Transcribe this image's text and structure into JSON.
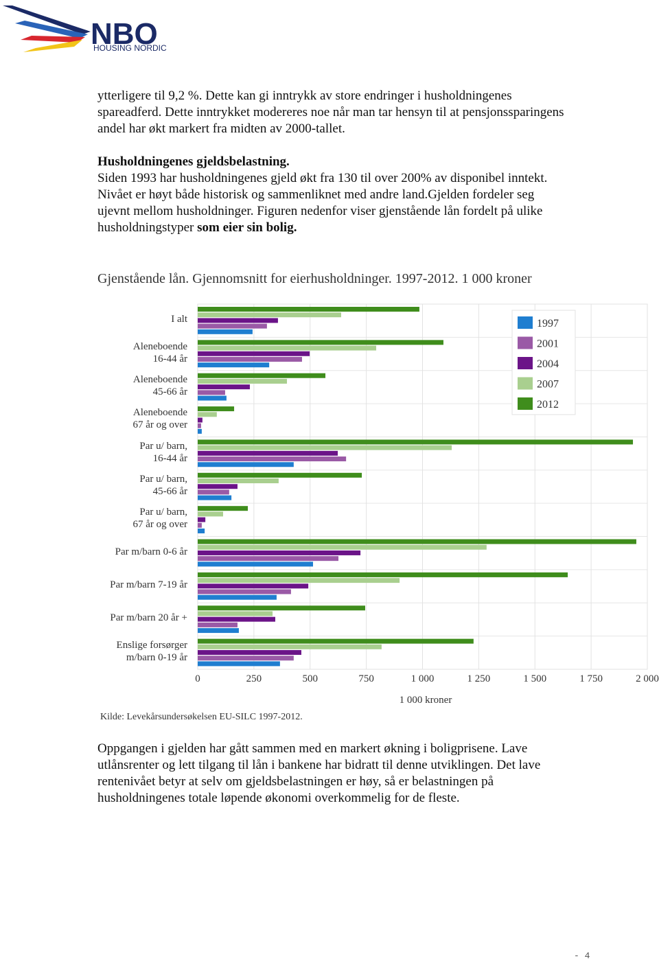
{
  "header": {
    "logo": "NBO",
    "logo_subtitle": "HOUSING NORDIC"
  },
  "paragraph1": "ytterligere til 9,2 %. Dette kan gi inntrykk av store endringer i husholdningenes spareadferd. Dette inntrykket modereres noe når man tar hensyn til at pensjonssparingens andel har økt markert fra midten av 2000-tallet.",
  "heading": "Husholdningenes gjeldsbelastning.",
  "paragraph2": {
    "text": "Siden 1993 har husholdningenes gjeld økt fra 130 til over 200% av disponibel inntekt. Nivået er høyt både historisk og sammenliknet med andre land.Gjelden fordeler seg ujevnt mellom husholdninger. Figuren nedenfor viser gjenstående lån fordelt på ulike husholdningstyper",
    "bold": "som eier sin bolig."
  },
  "chart_data": {
    "type": "hbar",
    "title": "Gjenstående lån. Gjennomsnitt for eierhusholdninger. 1997-2012. 1 000 kroner",
    "xlabel": "1 000 kroner",
    "source": "Kilde: Levekårsundersøkelsen EU-SILC 1997-2012.",
    "categories": [
      "I alt",
      "Aleneboende\n16-44 år",
      "Aleneboende\n45-66 år",
      "Aleneboende\n67 år og over",
      "Par u/ barn,\n16-44 år",
      "Par u/ barn,\n45-66 år",
      "Par u/ barn,\n67 år og over",
      "Par m/barn 0-6 år",
      "Par m/barn 7-19 år",
      "Par m/barn 20 år +",
      "Enslige forsørger\nm/barn 0-19 år"
    ],
    "series": [
      {
        "name": "1997",
        "color": "#1f7ed0",
        "values": [
          244,
          318,
          128,
          18,
          427,
          150,
          31,
          513,
          351,
          183,
          366
        ]
      },
      {
        "name": "2001",
        "color": "#9a5aa6",
        "values": [
          308,
          464,
          122,
          15,
          660,
          140,
          18,
          626,
          415,
          177,
          427
        ]
      },
      {
        "name": "2004",
        "color": "#6b1488",
        "values": [
          357,
          498,
          232,
          21,
          623,
          177,
          34,
          724,
          492,
          345,
          461
        ]
      },
      {
        "name": "2007",
        "color": "#a9cf8f",
        "values": [
          638,
          794,
          397,
          85,
          1130,
          360,
          113,
          1285,
          898,
          333,
          818
        ]
      },
      {
        "name": "2012",
        "color": "#3f8d1c",
        "values": [
          986,
          1093,
          568,
          162,
          1936,
          730,
          223,
          1951,
          1646,
          745,
          1227
        ]
      }
    ],
    "xlim": [
      0,
      2000
    ],
    "xticks": [
      0,
      250,
      500,
      750,
      {
        "value": 1000,
        "label": "1 000"
      },
      {
        "value": 1250,
        "label": "1 250"
      },
      {
        "value": 1500,
        "label": "1 500"
      },
      {
        "value": 1750,
        "label": "1 750"
      },
      {
        "value": 2000,
        "label": "2 000"
      }
    ],
    "grid": true
  },
  "paragraph3": "Oppgangen i gjelden har gått sammen med en markert økning i boligprisene. Lave utlånsrenter og lett tilgang til lån i bankene har bidratt til denne utviklingen. Det lave rentenivået betyr at selv om gjeldsbelastningen er høy, så er belastningen på husholdningenes totale løpende økonomi overkommelig for de fleste.",
  "footer": "- 4"
}
